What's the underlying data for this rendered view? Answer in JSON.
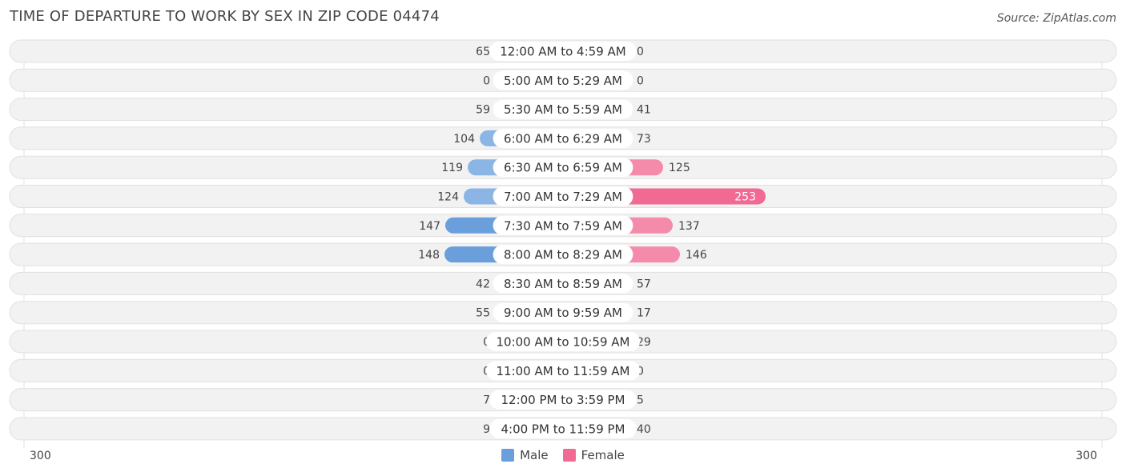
{
  "header": {
    "title": "TIME OF DEPARTURE TO WORK BY SEX IN ZIP CODE 04474",
    "source": "Source: ZipAtlas.com"
  },
  "axis": {
    "left_label": "300",
    "right_label": "300"
  },
  "legend": {
    "male_label": "Male",
    "female_label": "Female"
  },
  "colors": {
    "male": "#6a9fdc",
    "male_light": "#a9c8ec",
    "female": "#f06a93",
    "female_light": "#f7a8c0",
    "row_bg": "#f2f2f2"
  },
  "chart_data": {
    "type": "bar",
    "orientation": "horizontal-diverging",
    "title": "TIME OF DEPARTURE TO WORK BY SEX IN ZIP CODE 04474",
    "xlim": [
      -300,
      300
    ],
    "categories": [
      "12:00 AM to 4:59 AM",
      "5:00 AM to 5:29 AM",
      "5:30 AM to 5:59 AM",
      "6:00 AM to 6:29 AM",
      "6:30 AM to 6:59 AM",
      "7:00 AM to 7:29 AM",
      "7:30 AM to 7:59 AM",
      "8:00 AM to 8:29 AM",
      "8:30 AM to 8:59 AM",
      "9:00 AM to 9:59 AM",
      "10:00 AM to 10:59 AM",
      "11:00 AM to 11:59 AM",
      "12:00 PM to 3:59 PM",
      "4:00 PM to 11:59 PM"
    ],
    "series": [
      {
        "name": "Male",
        "values": [
          65,
          0,
          59,
          104,
          119,
          124,
          147,
          148,
          42,
          55,
          0,
          0,
          7,
          9
        ]
      },
      {
        "name": "Female",
        "values": [
          0,
          0,
          41,
          73,
          125,
          253,
          137,
          146,
          57,
          17,
          29,
          0,
          5,
          40
        ]
      }
    ],
    "legend_position": "bottom-center"
  }
}
